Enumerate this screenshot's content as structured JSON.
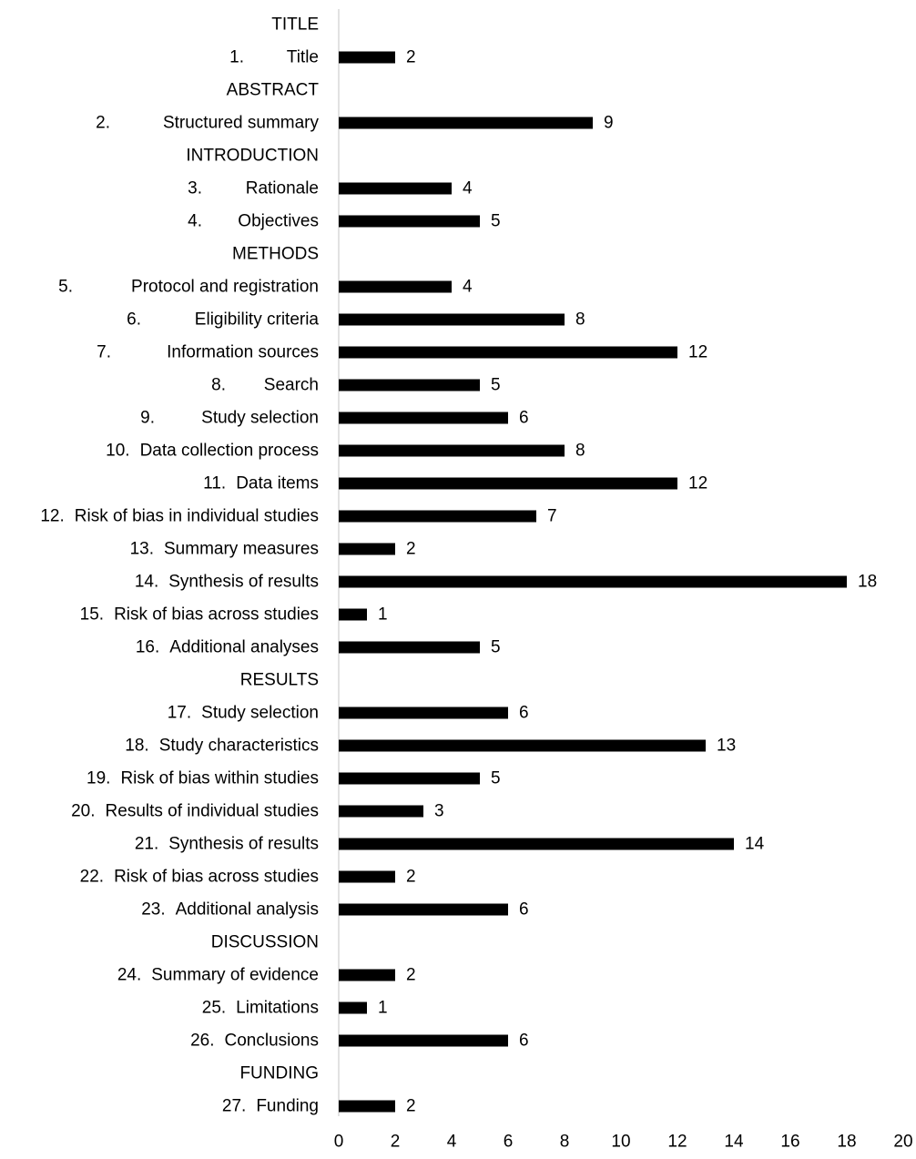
{
  "chart_data": {
    "type": "bar",
    "orientation": "horizontal",
    "bar_color": "#000000",
    "axis_color": "#d9d9d9",
    "xlim": [
      0,
      20
    ],
    "xticks": [
      0,
      2,
      4,
      6,
      8,
      10,
      12,
      14,
      16,
      18,
      20
    ],
    "grid": false,
    "legend": "none",
    "title": "",
    "xlabel": "",
    "ylabel": "",
    "rows": [
      {
        "label": "TITLE",
        "header": true
      },
      {
        "num": "1.",
        "label": "Title",
        "value": 2
      },
      {
        "label": "ABSTRACT",
        "header": true
      },
      {
        "num": "2.",
        "label": "Structured summary",
        "value": 9
      },
      {
        "label": "INTRODUCTION",
        "header": true
      },
      {
        "num": "3.",
        "label": "Rationale",
        "value": 4
      },
      {
        "num": "4.",
        "label": "Objectives",
        "value": 5
      },
      {
        "label": "METHODS",
        "header": true
      },
      {
        "num": "5.",
        "label": "Protocol and registration",
        "value": 4
      },
      {
        "num": "6.",
        "label": "Eligibility criteria",
        "value": 8
      },
      {
        "num": "7.",
        "label": "Information sources",
        "value": 12
      },
      {
        "num": "8.",
        "label": "Search",
        "value": 5
      },
      {
        "num": "9.",
        "label": "Study selection",
        "value": 6
      },
      {
        "num": "10.",
        "label": "Data collection process",
        "value": 8
      },
      {
        "num": "11.",
        "label": "Data items",
        "value": 12
      },
      {
        "num": "12.",
        "label": "Risk of bias in individual studies",
        "value": 7
      },
      {
        "num": "13.",
        "label": "Summary measures",
        "value": 2
      },
      {
        "num": "14.",
        "label": "Synthesis of results",
        "value": 18
      },
      {
        "num": "15.",
        "label": "Risk of bias across studies",
        "value": 1
      },
      {
        "num": "16.",
        "label": "Additional analyses",
        "value": 5
      },
      {
        "label": "RESULTS",
        "header": true
      },
      {
        "num": "17.",
        "label": "Study selection",
        "value": 6
      },
      {
        "num": "18.",
        "label": "Study characteristics",
        "value": 13
      },
      {
        "num": "19.",
        "label": "Risk of bias within studies",
        "value": 5
      },
      {
        "num": "20.",
        "label": "Results of individual studies",
        "value": 3
      },
      {
        "num": "21.",
        "label": "Synthesis of results",
        "value": 14
      },
      {
        "num": "22.",
        "label": "Risk of bias across studies",
        "value": 2
      },
      {
        "num": "23.",
        "label": "Additional analysis",
        "value": 6
      },
      {
        "label": "DISCUSSION",
        "header": true
      },
      {
        "num": "24.",
        "label": "Summary of evidence",
        "value": 2
      },
      {
        "num": "25.",
        "label": "Limitations",
        "value": 1
      },
      {
        "num": "26.",
        "label": "Conclusions",
        "value": 6
      },
      {
        "label": "FUNDING",
        "header": true
      },
      {
        "num": "27.",
        "label": "Funding",
        "value": 2
      }
    ]
  }
}
